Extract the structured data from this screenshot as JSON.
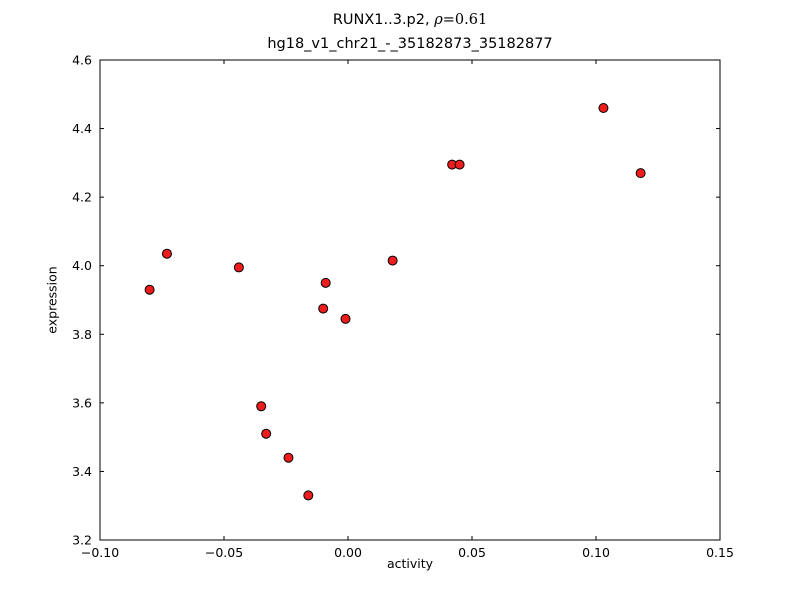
{
  "figure": {
    "title": {
      "prefix": "RUNX1..3.p2, ",
      "rho": "ρ",
      "rho_suffix": "=0.61"
    },
    "subtitle": "hg18_v1_chr21_-_35182873_35182877"
  },
  "chart_data": {
    "type": "scatter",
    "title": "RUNX1..3.p2, ρ=0.61",
    "subtitle": "hg18_v1_chr21_-_35182873_35182877",
    "xlabel": "activity",
    "ylabel": "expression",
    "xlim": [
      -0.1,
      0.15
    ],
    "ylim": [
      3.2,
      4.6
    ],
    "grid": false,
    "legend": null,
    "xticks": [
      -0.1,
      -0.05,
      0.0,
      0.05,
      0.1,
      0.15
    ],
    "xtick_labels": [
      "−0.10",
      "−0.05",
      "0.00",
      "0.05",
      "0.10",
      "0.15"
    ],
    "yticks": [
      3.2,
      3.4,
      3.6,
      3.8,
      4.0,
      4.2,
      4.4,
      4.6
    ],
    "ytick_labels": [
      "3.2",
      "3.4",
      "3.6",
      "3.8",
      "4.0",
      "4.2",
      "4.4",
      "4.6"
    ],
    "marker_color": "#ee1c1c",
    "marker_edge_color": "#000000",
    "points": [
      [
        -0.08,
        3.93
      ],
      [
        -0.073,
        4.035
      ],
      [
        -0.044,
        3.995
      ],
      [
        -0.035,
        3.59
      ],
      [
        -0.033,
        3.51
      ],
      [
        -0.024,
        3.44
      ],
      [
        -0.016,
        3.33
      ],
      [
        -0.01,
        3.875
      ],
      [
        -0.009,
        3.95
      ],
      [
        -0.001,
        3.845
      ],
      [
        0.018,
        4.015
      ],
      [
        0.042,
        4.295
      ],
      [
        0.045,
        4.295
      ],
      [
        0.103,
        4.46
      ],
      [
        0.118,
        4.27
      ]
    ]
  }
}
